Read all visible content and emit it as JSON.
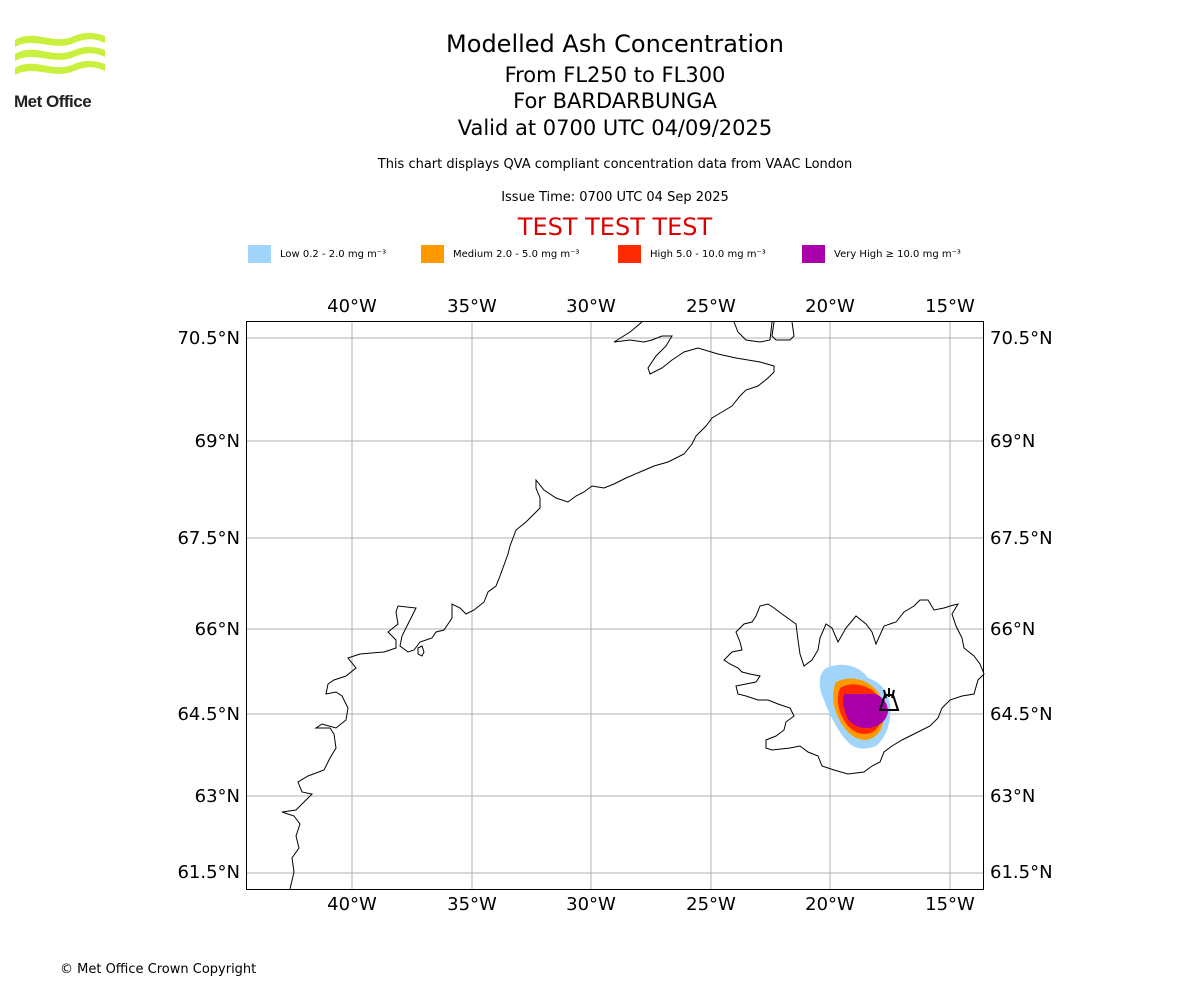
{
  "logo": {
    "text": "Met Office",
    "icon": "met-office-waves-logo"
  },
  "title": {
    "line1": "Modelled Ash Concentration",
    "line2": "From FL250 to FL300",
    "line3": "For BARDARBUNGA",
    "line4": "Valid at 0700 UTC 04/09/2025"
  },
  "subtitle": "This chart displays QVA compliant concentration data from VAAC London",
  "issue_time": "Issue Time: 0700 UTC 04 Sep 2025",
  "test_banner": "TEST TEST TEST",
  "legend": [
    {
      "label": "Low 0.2 - 2.0 mg m⁻³",
      "color": "#a0d4fb"
    },
    {
      "label": "Medium 2.0 - 5.0 mg m⁻³",
      "color": "#ff9900"
    },
    {
      "label": "High 5.0 - 10.0 mg m⁻³",
      "color": "#ff2a00"
    },
    {
      "label": "Very High ≥ 10.0 mg m⁻³",
      "color": "#aa00aa"
    }
  ],
  "map": {
    "lon_ticks": [
      "40°W",
      "35°W",
      "30°W",
      "25°W",
      "20°W",
      "15°W"
    ],
    "lat_ticks": [
      "70.5°N",
      "69°N",
      "67.5°N",
      "66°N",
      "64.5°N",
      "63°N",
      "61.5°N"
    ],
    "volcano_icon": "volcano-symbol-icon"
  },
  "copyright": "© Met Office Crown Copyright"
}
